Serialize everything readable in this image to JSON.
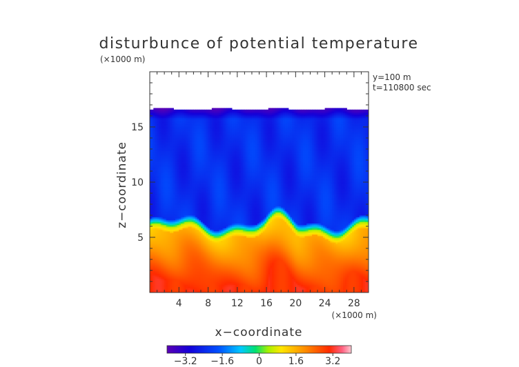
{
  "chart_data": {
    "type": "heatmap",
    "title": "disturbunce of potential temperature",
    "y_unit": "(×1000 m)",
    "x_unit": "(×1000 m)",
    "xlabel": "x−coordinate",
    "ylabel": "z−coordinate",
    "annotations": [
      "y=100 m",
      "t=110800 sec"
    ],
    "xlim": [
      0,
      30
    ],
    "ylim": [
      0,
      20
    ],
    "x_ticks": [
      4,
      8,
      12,
      16,
      20,
      24,
      28
    ],
    "y_ticks": [
      5,
      10,
      15
    ],
    "colorbar": {
      "range": [
        -4,
        4
      ],
      "ticks": [
        -3.2,
        -1.6,
        0,
        1.6,
        3.2
      ],
      "tick_labels": [
        "−3.2",
        "−1.6",
        "0",
        "1.6",
        "3.2"
      ]
    },
    "field": {
      "data_top_z": 16.6,
      "interface_z": 5.8,
      "upper_layer_value": -2.3,
      "lower_layer_value": 1.3,
      "bottom_value": 3.0
    }
  }
}
